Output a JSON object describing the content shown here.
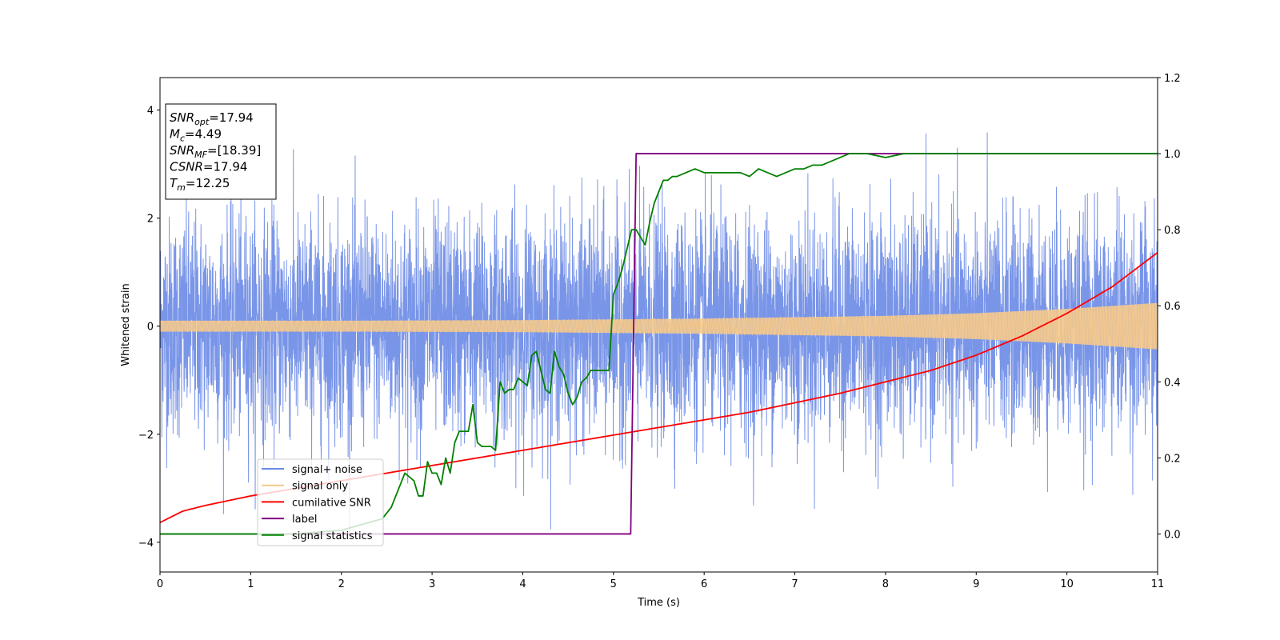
{
  "chart_data": {
    "type": "line",
    "xlabel": "Time (s)",
    "ylabel": "Whitened strain",
    "ylabel_right": "",
    "xlim": [
      0,
      11
    ],
    "ylim": [
      -4.55,
      4.6
    ],
    "ylim_right": [
      -0.1,
      1.2
    ],
    "xticks": [
      "0",
      "1",
      "2",
      "3",
      "4",
      "5",
      "6",
      "7",
      "8",
      "9",
      "10",
      "11"
    ],
    "yticks": [
      "−4",
      "−2",
      "0",
      "2",
      "4"
    ],
    "yticks_right": [
      "0.0",
      "0.2",
      "0.4",
      "0.6",
      "0.8",
      "1.0",
      "1.2"
    ],
    "grid": false,
    "legend_position": "lower-left",
    "legend": [
      {
        "label": "signal+ noise",
        "color": "#6a8ae6"
      },
      {
        "label": "signal only",
        "color": "#f5c98c"
      },
      {
        "label": "cumilative SNR",
        "color": "#ff0000"
      },
      {
        "label": "label",
        "color": "#800080"
      },
      {
        "label": "signal statistics",
        "color": "#008000"
      }
    ],
    "info_box": [
      {
        "main": "SNR",
        "sub": "opt",
        "rest": "=17.94"
      },
      {
        "main": "M",
        "sub": "c",
        "rest": "=4.49"
      },
      {
        "main": "SNR",
        "sub": "MF",
        "rest": "=[18.39]"
      },
      {
        "main": "CSNR",
        "sub": "",
        "rest": "=17.94"
      },
      {
        "main": "T",
        "sub": "m",
        "rest": "=12.25"
      }
    ],
    "series": [
      {
        "name": "signal+ noise",
        "axis": "left",
        "color": "#6a8ae6",
        "style": "noise",
        "sigma": 1.0,
        "x_range": [
          0,
          11
        ]
      },
      {
        "name": "signal only",
        "axis": "left",
        "color": "#f5c98c",
        "style": "chirp-envelope",
        "x": [
          0,
          2,
          4,
          6,
          8,
          9,
          10,
          11
        ],
        "amplitude": [
          0.1,
          0.1,
          0.11,
          0.14,
          0.19,
          0.24,
          0.32,
          0.43
        ]
      },
      {
        "name": "cumilative SNR",
        "axis": "right",
        "color": "#ff0000",
        "x": [
          0,
          0.25,
          0.5,
          1,
          1.5,
          2,
          2.5,
          3,
          3.5,
          4,
          4.5,
          5,
          5.5,
          6,
          6.5,
          7,
          7.5,
          8,
          8.5,
          9,
          9.5,
          10,
          10.5,
          11
        ],
        "y": [
          0.03,
          0.06,
          0.075,
          0.1,
          0.12,
          0.14,
          0.16,
          0.18,
          0.2,
          0.22,
          0.24,
          0.26,
          0.28,
          0.3,
          0.32,
          0.345,
          0.37,
          0.4,
          0.43,
          0.47,
          0.52,
          0.58,
          0.65,
          0.74
        ]
      },
      {
        "name": "label",
        "axis": "right",
        "color": "#800080",
        "x": [
          0,
          5.19,
          5.25,
          11
        ],
        "y": [
          0,
          0,
          1,
          1
        ]
      },
      {
        "name": "signal statistics",
        "axis": "right",
        "color": "#008000",
        "x": [
          0,
          1.5,
          2,
          2.3,
          2.45,
          2.55,
          2.65,
          2.7,
          2.8,
          2.85,
          2.9,
          2.95,
          3.0,
          3.05,
          3.1,
          3.15,
          3.2,
          3.25,
          3.3,
          3.35,
          3.4,
          3.45,
          3.5,
          3.55,
          3.6,
          3.65,
          3.7,
          3.75,
          3.8,
          3.85,
          3.9,
          3.95,
          4.0,
          4.05,
          4.1,
          4.15,
          4.2,
          4.25,
          4.3,
          4.35,
          4.4,
          4.45,
          4.5,
          4.55,
          4.6,
          4.65,
          4.7,
          4.75,
          4.8,
          4.85,
          4.9,
          4.95,
          5.0,
          5.05,
          5.1,
          5.15,
          5.2,
          5.25,
          5.3,
          5.35,
          5.4,
          5.45,
          5.5,
          5.55,
          5.6,
          5.65,
          5.7,
          5.8,
          5.9,
          6.0,
          6.1,
          6.2,
          6.3,
          6.4,
          6.5,
          6.6,
          6.7,
          6.8,
          6.9,
          7.0,
          7.1,
          7.2,
          7.3,
          7.4,
          7.5,
          7.6,
          7.7,
          7.8,
          8.0,
          8.2,
          8.3,
          8.5,
          8.7,
          9.0,
          10.0,
          11.0
        ],
        "y": [
          0.0,
          0.0,
          0.01,
          0.03,
          0.04,
          0.07,
          0.13,
          0.16,
          0.14,
          0.1,
          0.1,
          0.19,
          0.16,
          0.16,
          0.13,
          0.2,
          0.16,
          0.24,
          0.27,
          0.27,
          0.27,
          0.34,
          0.24,
          0.23,
          0.23,
          0.23,
          0.22,
          0.4,
          0.37,
          0.38,
          0.38,
          0.41,
          0.4,
          0.39,
          0.47,
          0.48,
          0.43,
          0.38,
          0.37,
          0.48,
          0.44,
          0.42,
          0.37,
          0.34,
          0.36,
          0.4,
          0.41,
          0.43,
          0.43,
          0.43,
          0.43,
          0.43,
          0.63,
          0.66,
          0.7,
          0.75,
          0.8,
          0.8,
          0.78,
          0.76,
          0.82,
          0.87,
          0.9,
          0.93,
          0.93,
          0.94,
          0.94,
          0.95,
          0.96,
          0.95,
          0.95,
          0.95,
          0.95,
          0.95,
          0.94,
          0.96,
          0.95,
          0.94,
          0.95,
          0.96,
          0.96,
          0.97,
          0.97,
          0.98,
          0.99,
          1.0,
          1.0,
          1.0,
          0.99,
          1.0,
          1.0,
          1.0,
          1.0,
          1.0,
          1.0,
          1.0
        ]
      }
    ]
  }
}
